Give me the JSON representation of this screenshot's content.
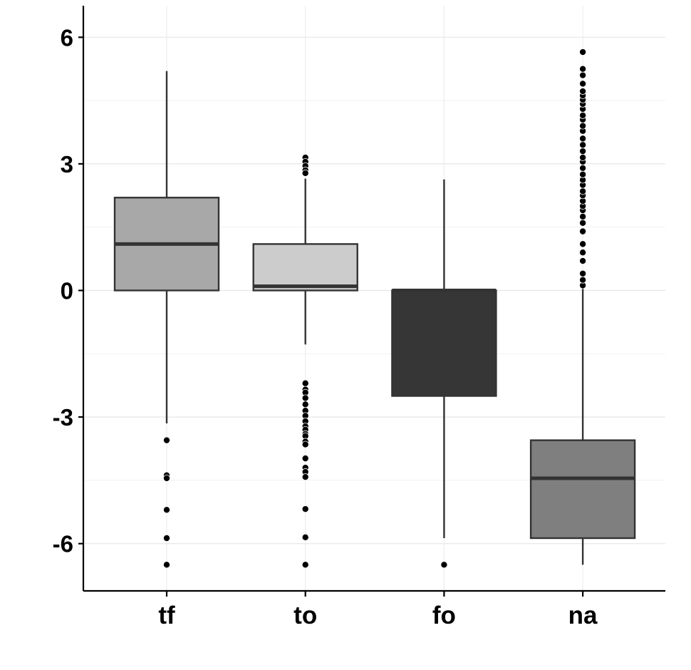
{
  "chart_data": {
    "type": "box",
    "title": "",
    "xlabel": "",
    "ylabel": "",
    "categories": [
      "tf",
      "to",
      "fo",
      "na"
    ],
    "ylim": [
      -7.1,
      6.2
    ],
    "yticks": [
      6,
      3,
      0,
      -3,
      -6
    ],
    "ytick_labels": [
      "6",
      "3",
      "0",
      "-3",
      "-6"
    ],
    "grid": true,
    "legend": "none",
    "boxes": [
      {
        "category": "tf",
        "fill": "#a8a8a8",
        "whisker_low": -3.15,
        "q1": 0.0,
        "median": 1.1,
        "q3": 2.2,
        "whisker_high": 5.2,
        "outliers": [
          -3.55,
          -4.38,
          -4.45,
          -5.2,
          -5.87,
          -6.5
        ]
      },
      {
        "category": "to",
        "fill": "#cccccc",
        "whisker_low": -1.28,
        "q1": 0.0,
        "median": 0.1,
        "q3": 1.1,
        "whisker_high": 2.65,
        "outliers": [
          3.15,
          3.05,
          2.95,
          2.85,
          2.78,
          -2.2,
          -2.35,
          -2.42,
          -2.55,
          -2.7,
          -2.85,
          -2.97,
          -3.1,
          -3.22,
          -3.3,
          -3.4,
          -3.45,
          -3.58,
          -3.65,
          -3.98,
          -4.2,
          -4.3,
          -4.42,
          -5.18,
          -5.85,
          -6.5
        ]
      },
      {
        "category": "fo",
        "fill": "#363636",
        "whisker_low": -5.87,
        "q1": -2.5,
        "median": 0.0,
        "q3": 0.0,
        "whisker_high": 2.63,
        "outliers": [
          -6.5
        ]
      },
      {
        "category": "na",
        "fill": "#7f7f7f",
        "whisker_low": -6.5,
        "q1": -5.87,
        "median": -4.45,
        "q3": -3.55,
        "whisker_high": 0.1,
        "outliers": [
          0.12,
          0.25,
          0.4,
          0.7,
          0.9,
          1.1,
          1.4,
          1.6,
          1.75,
          1.9,
          2.0,
          2.12,
          2.25,
          2.35,
          2.5,
          2.62,
          2.75,
          2.9,
          3.05,
          3.15,
          3.3,
          3.45,
          3.6,
          3.78,
          3.9,
          4.05,
          4.15,
          4.3,
          4.42,
          4.52,
          4.62,
          4.72,
          4.9,
          5.1,
          5.25,
          5.65
        ]
      }
    ]
  }
}
